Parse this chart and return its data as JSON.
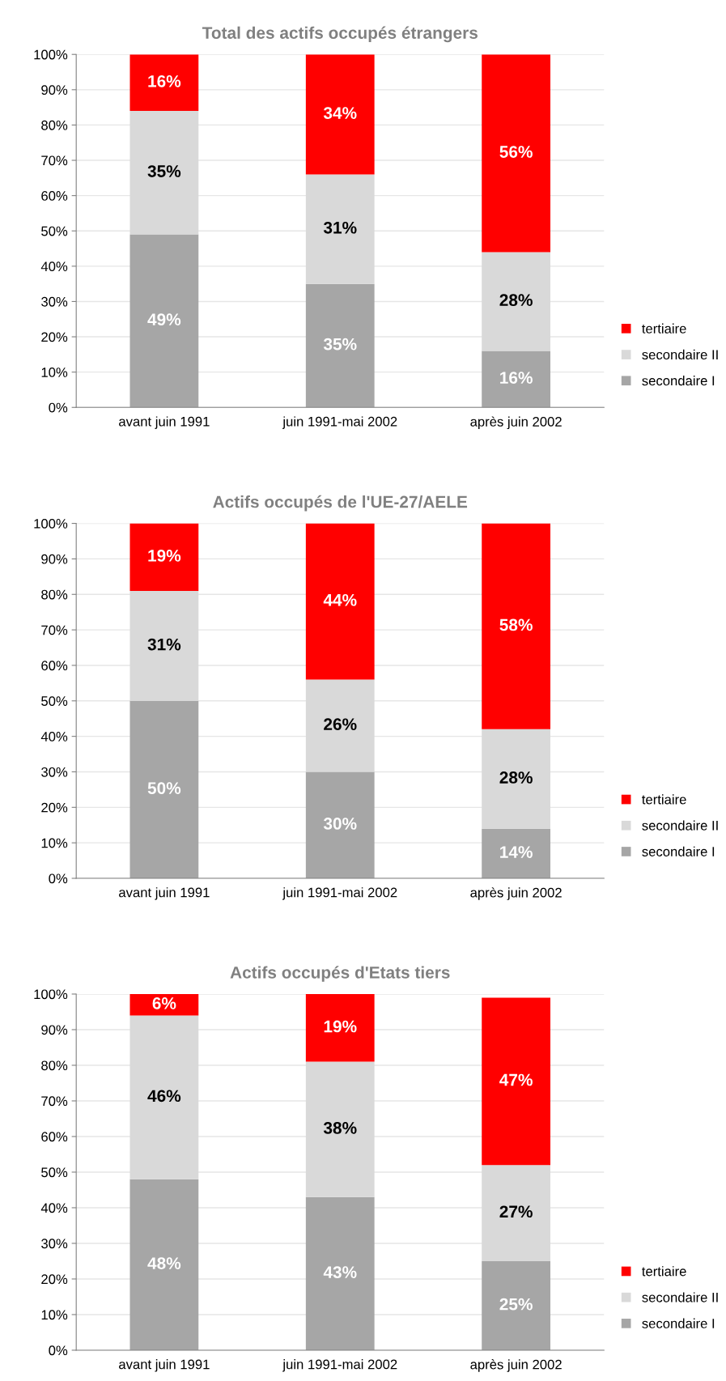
{
  "chart_data": [
    {
      "type": "bar",
      "title": "Total des actifs occupés étrangers",
      "categories": [
        "avant juin 1991",
        "juin 1991-mai 2002",
        "après juin 2002"
      ],
      "stacked": true,
      "grid": "y",
      "legend": "right",
      "ylim": [
        0,
        100
      ],
      "yticks": [
        {
          "value": 0,
          "label": "0%"
        },
        {
          "value": 10,
          "label": "10%"
        },
        {
          "value": 20,
          "label": "20%"
        },
        {
          "value": 30,
          "label": "30%"
        },
        {
          "value": 40,
          "label": "40%"
        },
        {
          "value": 50,
          "label": "50%"
        },
        {
          "value": 60,
          "label": "60%"
        },
        {
          "value": 70,
          "label": "70%"
        },
        {
          "value": 80,
          "label": "80%"
        },
        {
          "value": 90,
          "label": "90%"
        },
        {
          "value": 100,
          "label": "100%"
        }
      ],
      "series": [
        {
          "name": "secondaire I",
          "color": "#a6a6a6",
          "values": [
            49,
            35,
            16
          ],
          "value_labels": [
            "49%",
            "35%",
            "16%"
          ]
        },
        {
          "name": "secondaire II",
          "color": "#d9d9d9",
          "values": [
            35,
            31,
            28
          ],
          "value_labels": [
            "35%",
            "31%",
            "28%"
          ]
        },
        {
          "name": "tertiaire",
          "color": "#ff0000",
          "values": [
            16,
            34,
            56
          ],
          "value_labels": [
            "16%",
            "34%",
            "56%"
          ]
        }
      ]
    },
    {
      "type": "bar",
      "title": "Actifs occupés de l'UE-27/AELE",
      "categories": [
        "avant juin 1991",
        "juin 1991-mai 2002",
        "après juin 2002"
      ],
      "stacked": true,
      "grid": "y",
      "legend": "right",
      "ylim": [
        0,
        100
      ],
      "yticks": [
        {
          "value": 0,
          "label": "0%"
        },
        {
          "value": 10,
          "label": "10%"
        },
        {
          "value": 20,
          "label": "20%"
        },
        {
          "value": 30,
          "label": "30%"
        },
        {
          "value": 40,
          "label": "40%"
        },
        {
          "value": 50,
          "label": "50%"
        },
        {
          "value": 60,
          "label": "60%"
        },
        {
          "value": 70,
          "label": "70%"
        },
        {
          "value": 80,
          "label": "80%"
        },
        {
          "value": 90,
          "label": "90%"
        },
        {
          "value": 100,
          "label": "100%"
        }
      ],
      "series": [
        {
          "name": "secondaire I",
          "color": "#a6a6a6",
          "values": [
            50,
            30,
            14
          ],
          "value_labels": [
            "50%",
            "30%",
            "14%"
          ]
        },
        {
          "name": "secondaire II",
          "color": "#d9d9d9",
          "values": [
            31,
            26,
            28
          ],
          "value_labels": [
            "31%",
            "26%",
            "28%"
          ]
        },
        {
          "name": "tertiaire",
          "color": "#ff0000",
          "values": [
            19,
            44,
            58
          ],
          "value_labels": [
            "19%",
            "44%",
            "58%"
          ]
        }
      ]
    },
    {
      "type": "bar",
      "title": "Actifs occupés d'Etats tiers",
      "categories": [
        "avant juin 1991",
        "juin 1991-mai 2002",
        "après juin 2002"
      ],
      "stacked": true,
      "grid": "y",
      "legend": "right",
      "ylim": [
        0,
        100
      ],
      "yticks": [
        {
          "value": 0,
          "label": "0%"
        },
        {
          "value": 10,
          "label": "10%"
        },
        {
          "value": 20,
          "label": "20%"
        },
        {
          "value": 30,
          "label": "30%"
        },
        {
          "value": 40,
          "label": "40%"
        },
        {
          "value": 50,
          "label": "50%"
        },
        {
          "value": 60,
          "label": "60%"
        },
        {
          "value": 70,
          "label": "70%"
        },
        {
          "value": 80,
          "label": "80%"
        },
        {
          "value": 90,
          "label": "90%"
        },
        {
          "value": 100,
          "label": "100%"
        }
      ],
      "series": [
        {
          "name": "secondaire I",
          "color": "#a6a6a6",
          "values": [
            48,
            43,
            25
          ],
          "value_labels": [
            "48%",
            "43%",
            "25%"
          ]
        },
        {
          "name": "secondaire II",
          "color": "#d9d9d9",
          "values": [
            46,
            38,
            27
          ],
          "value_labels": [
            "46%",
            "38%",
            "27%"
          ]
        },
        {
          "name": "tertiaire",
          "color": "#ff0000",
          "values": [
            6,
            19,
            47
          ],
          "value_labels": [
            "6%",
            "19%",
            "47%"
          ]
        }
      ]
    }
  ]
}
